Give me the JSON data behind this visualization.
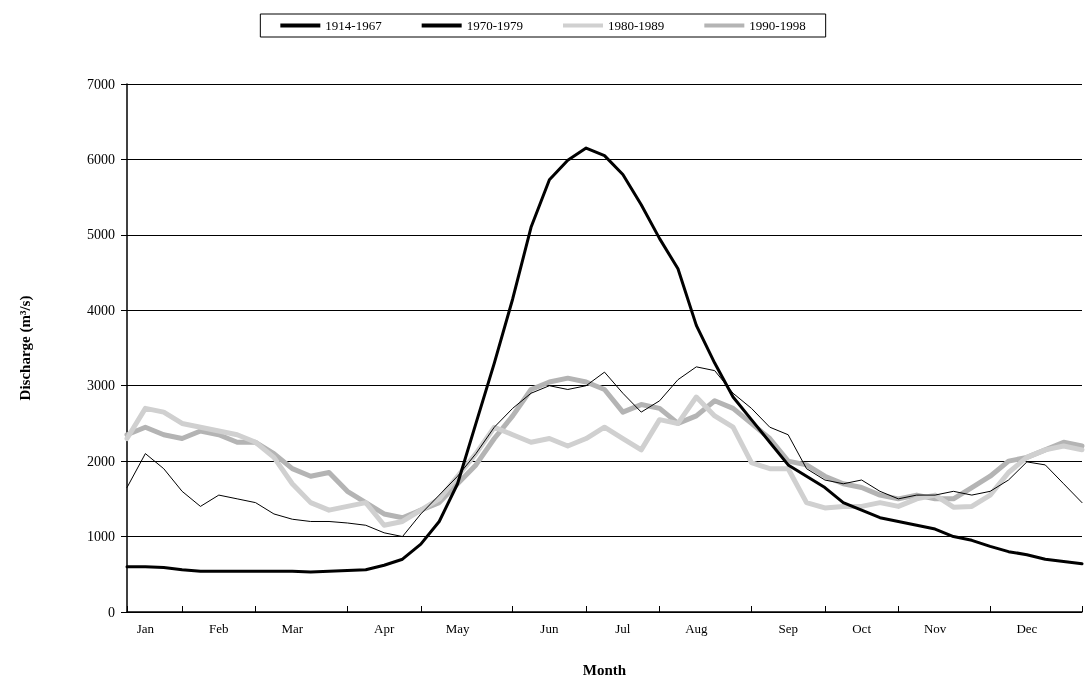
{
  "chart_data": {
    "type": "line",
    "xlabel": "Month",
    "ylabel": "Discharge (m³/s)",
    "categories": [
      null,
      "Jan",
      null,
      null,
      null,
      "Feb",
      null,
      null,
      null,
      "Mar",
      null,
      null,
      null,
      null,
      "Apr",
      null,
      null,
      null,
      "May",
      null,
      null,
      null,
      null,
      "Jun",
      null,
      null,
      null,
      "Jul",
      null,
      null,
      null,
      "Aug",
      null,
      null,
      null,
      null,
      "Sep",
      null,
      null,
      null,
      "Oct",
      null,
      null,
      null,
      "Nov",
      null,
      null,
      null,
      null,
      "Dec",
      null,
      null,
      null
    ],
    "series": [
      {
        "name": "1914-1967",
        "color": "#000000",
        "values": [
          600,
          600,
          590,
          560,
          540,
          540,
          540,
          540,
          540,
          540,
          530,
          540,
          550,
          560,
          620,
          700,
          900,
          1200,
          1700,
          2500,
          3300,
          4150,
          5100,
          5730,
          5990,
          6150,
          6050,
          5800,
          5400,
          4950,
          4550,
          3800,
          3300,
          2850,
          2550,
          2250,
          1950,
          1800,
          1650,
          1450,
          1350,
          1250,
          1200,
          1150,
          1100,
          1000,
          950,
          870,
          800,
          760,
          700,
          670,
          640
        ]
      },
      {
        "name": "1970-1979",
        "color": "#000000",
        "values": [
          1650,
          2100,
          1900,
          1600,
          1400,
          1550,
          1500,
          1450,
          1300,
          1230,
          1200,
          1200,
          1180,
          1150,
          1050,
          1000,
          1300,
          1550,
          1800,
          2100,
          2450,
          2700,
          2900,
          3000,
          2950,
          3000,
          3180,
          2900,
          2650,
          2800,
          3080,
          3250,
          3200,
          2900,
          2700,
          2450,
          2350,
          1900,
          1750,
          1700,
          1750,
          1600,
          1500,
          1550,
          1550,
          1600,
          1550,
          1600,
          1750,
          1990,
          1950,
          1700,
          1450
        ]
      },
      {
        "name": "1980-1989",
        "color": "#d0d0d0",
        "values": [
          2300,
          2700,
          2650,
          2500,
          2450,
          2400,
          2350,
          2250,
          2050,
          1700,
          1450,
          1350,
          1400,
          1450,
          1150,
          1200,
          1350,
          1500,
          1800,
          2100,
          2450,
          2350,
          2250,
          2300,
          2200,
          2300,
          2450,
          2300,
          2150,
          2550,
          2500,
          2850,
          2600,
          2450,
          1980,
          1900,
          1900,
          1450,
          1380,
          1400,
          1400,
          1450,
          1400,
          1500,
          1550,
          1390,
          1400,
          1550,
          1850,
          2050,
          2150,
          2200,
          2150
        ]
      },
      {
        "name": "1990-1998",
        "color": "#b4b4b4",
        "values": [
          2350,
          2450,
          2350,
          2300,
          2400,
          2350,
          2250,
          2250,
          2100,
          1900,
          1800,
          1850,
          1600,
          1450,
          1300,
          1250,
          1350,
          1450,
          1700,
          1950,
          2300,
          2600,
          2950,
          3050,
          3100,
          3050,
          2950,
          2650,
          2750,
          2700,
          2500,
          2600,
          2800,
          2700,
          2500,
          2300,
          2000,
          1950,
          1800,
          1700,
          1650,
          1550,
          1500,
          1550,
          1500,
          1500,
          1650,
          1800,
          2000,
          2050,
          2150,
          2250,
          2200
        ]
      }
    ],
    "ylim": [
      0,
      7000
    ],
    "yticks": [
      0,
      1000,
      2000,
      3000,
      4000,
      5000,
      6000,
      7000
    ],
    "grid": "y",
    "legend": "top",
    "marker": "none",
    "line_style": "solid"
  }
}
